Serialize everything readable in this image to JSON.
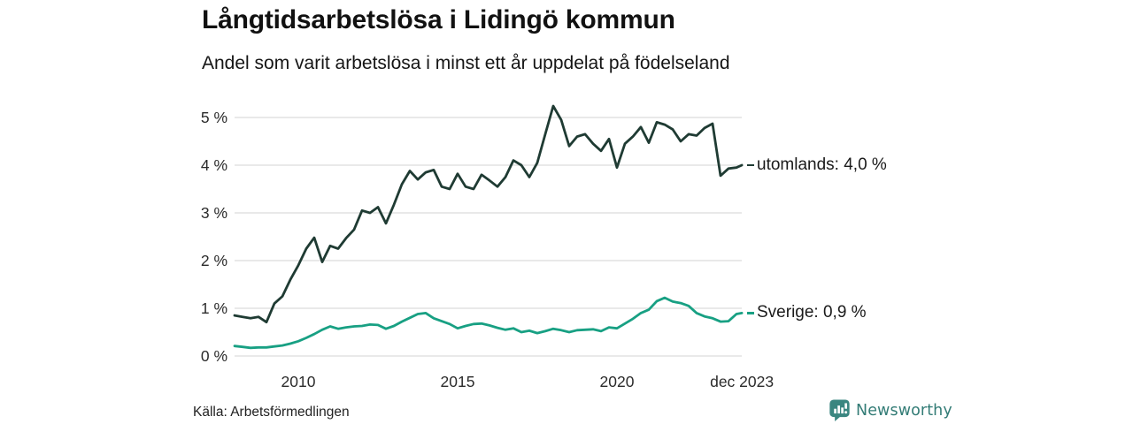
{
  "title": "Långtidsarbetslösa i Lidingö kommun",
  "subtitle": "Andel som varit arbetslösa i minst ett år uppdelat på födelseland",
  "source": "Källa: Arbetsförmedlingen",
  "branding": {
    "name": "Newsworthy",
    "icon": "newsworthy-speech-bubble-bar-chart-icon",
    "color": "#337c76"
  },
  "colors": {
    "background": "#ffffff",
    "gridline": "#dcdcdc",
    "axis_text": "#2b2b2b",
    "series_abroad": "#1f3b33",
    "series_sweden": "#18a083"
  },
  "chart_data": {
    "type": "line",
    "title": "Långtidsarbetslösa i Lidingö kommun",
    "subtitle": "Andel som varit arbetslösa i minst ett år uppdelat på födelseland",
    "xlabel": "",
    "ylabel": "",
    "xlim": [
      2008,
      2024.1
    ],
    "ylim": [
      0,
      5.4
    ],
    "grid": "horizontal",
    "legend_position": "line-end-labels-right",
    "y_ticks": [
      {
        "value": 0,
        "label": "0 %"
      },
      {
        "value": 1,
        "label": "1 %"
      },
      {
        "value": 2,
        "label": "2 %"
      },
      {
        "value": 3,
        "label": "3 %"
      },
      {
        "value": 4,
        "label": "4 %"
      },
      {
        "value": 5,
        "label": "5 %"
      }
    ],
    "x_ticks": [
      {
        "x": 2010,
        "label": "2010"
      },
      {
        "x": 2015,
        "label": "2015"
      },
      {
        "x": 2020,
        "label": "2020"
      },
      {
        "x": 2023.92,
        "label": "dec 2023"
      }
    ],
    "x": [
      2008,
      2008.25,
      2008.5,
      2008.75,
      2009,
      2009.25,
      2009.5,
      2009.75,
      2010,
      2010.25,
      2010.5,
      2010.75,
      2011,
      2011.25,
      2011.5,
      2011.75,
      2012,
      2012.25,
      2012.5,
      2012.75,
      2013,
      2013.25,
      2013.5,
      2013.75,
      2014,
      2014.25,
      2014.5,
      2014.75,
      2015,
      2015.25,
      2015.5,
      2015.75,
      2016,
      2016.25,
      2016.5,
      2016.75,
      2017,
      2017.25,
      2017.5,
      2017.75,
      2018,
      2018.25,
      2018.5,
      2018.75,
      2019,
      2019.25,
      2019.5,
      2019.75,
      2020,
      2020.25,
      2020.5,
      2020.75,
      2021,
      2021.25,
      2021.5,
      2021.75,
      2022,
      2022.25,
      2022.5,
      2022.75,
      2023,
      2023.25,
      2023.5,
      2023.75,
      2023.92
    ],
    "series": [
      {
        "name": "utomlands",
        "end_label": "utomlands: 4,0 %",
        "end_value_text": "4,0 %",
        "color": "#1f3b33",
        "values": [
          0.85,
          0.82,
          0.79,
          0.82,
          0.71,
          1.1,
          1.25,
          1.6,
          1.9,
          2.25,
          2.48,
          1.97,
          2.31,
          2.25,
          2.47,
          2.65,
          3.05,
          3.0,
          3.12,
          2.78,
          3.17,
          3.6,
          3.88,
          3.7,
          3.85,
          3.9,
          3.55,
          3.5,
          3.82,
          3.55,
          3.5,
          3.8,
          3.68,
          3.55,
          3.75,
          4.1,
          4.0,
          3.75,
          4.05,
          4.65,
          5.24,
          4.95,
          4.4,
          4.6,
          4.65,
          4.45,
          4.3,
          4.55,
          3.95,
          4.45,
          4.6,
          4.8,
          4.47,
          4.9,
          4.85,
          4.75,
          4.5,
          4.65,
          4.62,
          4.78,
          4.87,
          3.78,
          3.93,
          3.95,
          4.0
        ]
      },
      {
        "name": "Sverige",
        "end_label": "Sverige: 0,9 %",
        "end_value_text": "0,9 %",
        "color": "#18a083",
        "values": [
          0.21,
          0.19,
          0.17,
          0.18,
          0.18,
          0.2,
          0.22,
          0.26,
          0.31,
          0.38,
          0.46,
          0.55,
          0.62,
          0.57,
          0.6,
          0.62,
          0.63,
          0.66,
          0.65,
          0.57,
          0.63,
          0.72,
          0.8,
          0.88,
          0.9,
          0.79,
          0.73,
          0.67,
          0.58,
          0.63,
          0.67,
          0.68,
          0.64,
          0.59,
          0.55,
          0.58,
          0.5,
          0.53,
          0.48,
          0.52,
          0.57,
          0.54,
          0.5,
          0.54,
          0.55,
          0.56,
          0.52,
          0.6,
          0.58,
          0.68,
          0.78,
          0.9,
          0.97,
          1.15,
          1.22,
          1.14,
          1.11,
          1.05,
          0.9,
          0.83,
          0.79,
          0.72,
          0.73,
          0.88,
          0.9
        ]
      }
    ]
  }
}
